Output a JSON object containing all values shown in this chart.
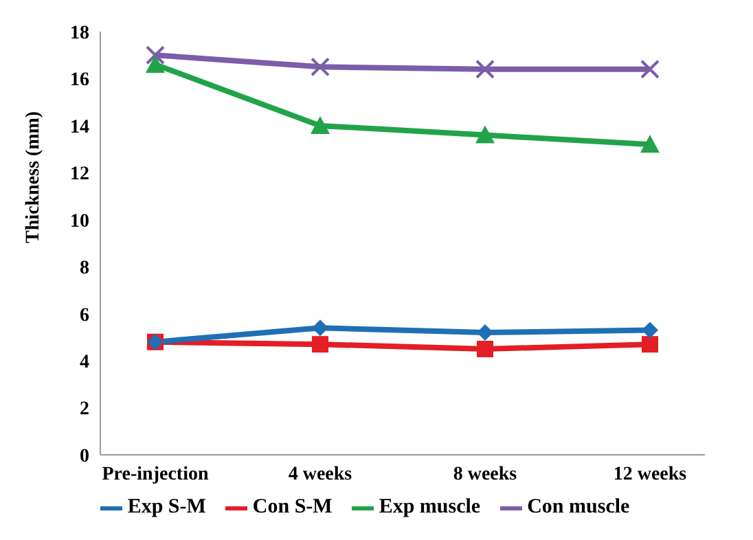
{
  "chart_data": {
    "type": "line",
    "ylabel": "Thickness (mm)",
    "categories": [
      "Pre-injection",
      "4 weeks",
      "8 weeks",
      "12 weeks"
    ],
    "series": [
      {
        "name": "Exp S-M",
        "color": "#1f6fb5",
        "marker": "diamond",
        "values": [
          4.8,
          5.4,
          5.2,
          5.3
        ]
      },
      {
        "name": "Con S-M",
        "color": "#e31e25",
        "marker": "square",
        "values": [
          4.8,
          4.7,
          4.5,
          4.7
        ]
      },
      {
        "name": "Exp muscle",
        "color": "#22a34a",
        "marker": "triangle",
        "values": [
          16.6,
          14.0,
          13.6,
          13.2
        ]
      },
      {
        "name": "Con muscle",
        "color": "#7b5ea7",
        "marker": "cross",
        "values": [
          17.0,
          16.5,
          16.4,
          16.4
        ]
      }
    ],
    "ylim": [
      0,
      18
    ],
    "yticks": [
      0,
      2,
      4,
      6,
      8,
      10,
      12,
      14,
      16,
      18
    ],
    "grid": false,
    "legend": "bottom"
  }
}
